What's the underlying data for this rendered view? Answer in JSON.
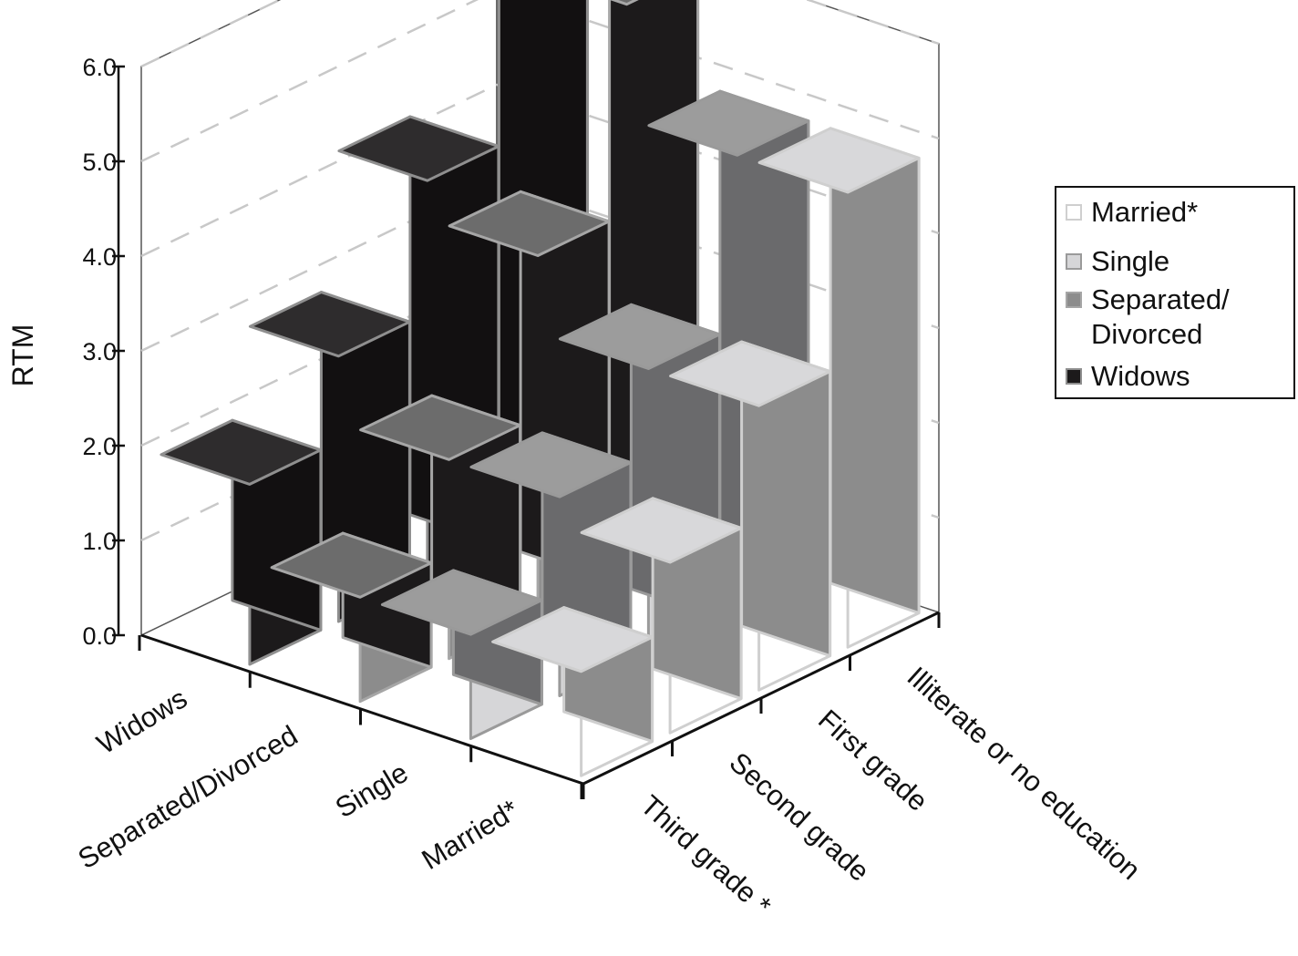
{
  "chart_data": {
    "type": "bar",
    "projection": "3d",
    "ylabel": "RTM",
    "ylim": [
      0,
      6
    ],
    "yticks": [
      "0.0",
      "1.0",
      "2.0",
      "3.0",
      "4.0",
      "5.0",
      "6.0"
    ],
    "grid": true,
    "legend_position": "right",
    "marital_status": [
      "Widows",
      "Separated/Divorced",
      "Single",
      "Married*"
    ],
    "education": [
      "Third grade *",
      "Second grade",
      "First grade",
      "Illiterate or no education"
    ],
    "series": [
      {
        "name": "Widows",
        "legend_label": " Widows",
        "values": [
          1.9,
          2.8,
          4.2,
          5.8
        ]
      },
      {
        "name": "Separated/Divorced",
        "legend_label": "Separated/ Divorced",
        "values": [
          1.1,
          2.1,
          3.8,
          6.0
        ]
      },
      {
        "name": "Single",
        "legend_label": "Single",
        "values": [
          1.1,
          2.1,
          3.0,
          4.8
        ]
      },
      {
        "name": "Married*",
        "legend_label": "Married*",
        "values": [
          1.1,
          1.8,
          3.0,
          4.8
        ]
      }
    ],
    "colors": {
      "Widows": {
        "front": "#1c1a1b",
        "side": "#121011",
        "top": "#2e2c2d",
        "edge": "#8f8f8f"
      },
      "Separated/Divorced": {
        "front": "#8c8c8c",
        "side": "#1c1a1b",
        "top": "#6c6c6c",
        "edge": "#a6a6a6"
      },
      "Single": {
        "front": "#d6d6d8",
        "side": "#6a6a6c",
        "top": "#9c9c9c",
        "edge": "#9a9a9a"
      },
      "Married*": {
        "front": "#ffffff",
        "side": "#8c8c8c",
        "top": "#d8d8da",
        "edge": "#cfcfcf"
      }
    }
  }
}
